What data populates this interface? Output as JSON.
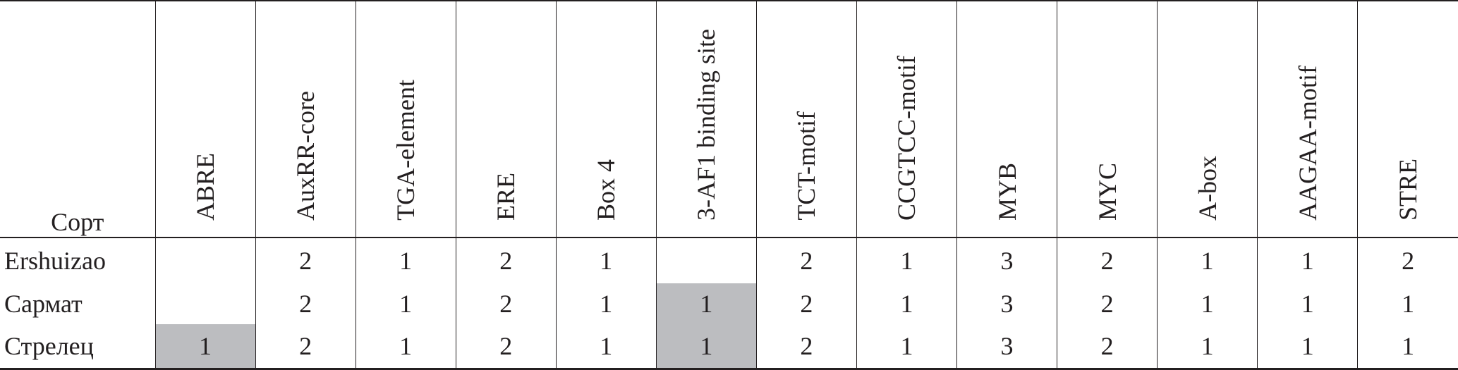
{
  "table": {
    "corner_header": "Сорт",
    "columns": [
      "ABRE",
      "AuxRR-core",
      "TGA-element",
      "ERE",
      "Box 4",
      "3-AF1 binding site",
      "TCT-motif",
      "CCGTCC-motif",
      "MYB",
      "MYC",
      "A-box",
      "AAGAA-motif",
      "STRE"
    ],
    "rows": [
      {
        "name": "Ershuizao",
        "values": [
          "",
          "2",
          "1",
          "2",
          "1",
          "",
          "2",
          "1",
          "3",
          "2",
          "1",
          "1",
          "2"
        ],
        "highlighted": [
          false,
          false,
          false,
          false,
          false,
          false,
          false,
          false,
          false,
          false,
          false,
          false,
          false
        ]
      },
      {
        "name": "Сармат",
        "values": [
          "",
          "2",
          "1",
          "2",
          "1",
          "1",
          "2",
          "1",
          "3",
          "2",
          "1",
          "1",
          "1"
        ],
        "highlighted": [
          false,
          false,
          false,
          false,
          false,
          true,
          false,
          false,
          false,
          false,
          false,
          false,
          false
        ]
      },
      {
        "name": "Стрелец",
        "values": [
          "1",
          "2",
          "1",
          "2",
          "1",
          "1",
          "2",
          "1",
          "3",
          "2",
          "1",
          "1",
          "1"
        ],
        "highlighted": [
          true,
          false,
          false,
          false,
          false,
          true,
          false,
          false,
          false,
          false,
          false,
          false,
          false
        ]
      }
    ],
    "highlight_color": "#bcbdc0"
  }
}
